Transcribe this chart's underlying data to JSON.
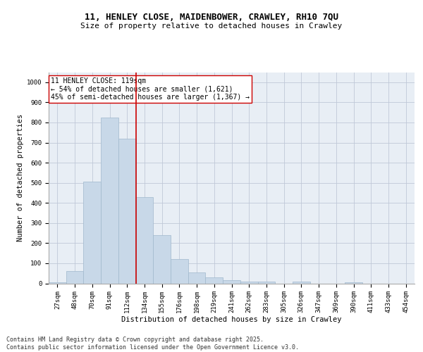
{
  "title_line1": "11, HENLEY CLOSE, MAIDENBOWER, CRAWLEY, RH10 7QU",
  "title_line2": "Size of property relative to detached houses in Crawley",
  "xlabel": "Distribution of detached houses by size in Crawley",
  "ylabel": "Number of detached properties",
  "categories": [
    "27sqm",
    "48sqm",
    "70sqm",
    "91sqm",
    "112sqm",
    "134sqm",
    "155sqm",
    "176sqm",
    "198sqm",
    "219sqm",
    "241sqm",
    "262sqm",
    "283sqm",
    "305sqm",
    "326sqm",
    "347sqm",
    "369sqm",
    "390sqm",
    "411sqm",
    "433sqm",
    "454sqm"
  ],
  "values": [
    5,
    60,
    505,
    825,
    720,
    430,
    240,
    120,
    55,
    30,
    15,
    10,
    10,
    0,
    10,
    0,
    0,
    5,
    0,
    0,
    0
  ],
  "bar_color": "#c8d8e8",
  "bar_edgecolor": "#a0b8cc",
  "vline_x": 4.5,
  "vline_color": "#cc0000",
  "annotation_text": "11 HENLEY CLOSE: 119sqm\n← 54% of detached houses are smaller (1,621)\n45% of semi-detached houses are larger (1,367) →",
  "annotation_box_color": "#ffffff",
  "annotation_box_edgecolor": "#cc0000",
  "ylim": [
    0,
    1050
  ],
  "yticks": [
    0,
    100,
    200,
    300,
    400,
    500,
    600,
    700,
    800,
    900,
    1000
  ],
  "grid_color": "#c0c8d8",
  "bg_color": "#e8eef5",
  "footer": "Contains HM Land Registry data © Crown copyright and database right 2025.\nContains public sector information licensed under the Open Government Licence v3.0.",
  "title_fontsize": 9,
  "subtitle_fontsize": 8,
  "axis_label_fontsize": 7.5,
  "tick_fontsize": 6.5,
  "annotation_fontsize": 7,
  "footer_fontsize": 6
}
